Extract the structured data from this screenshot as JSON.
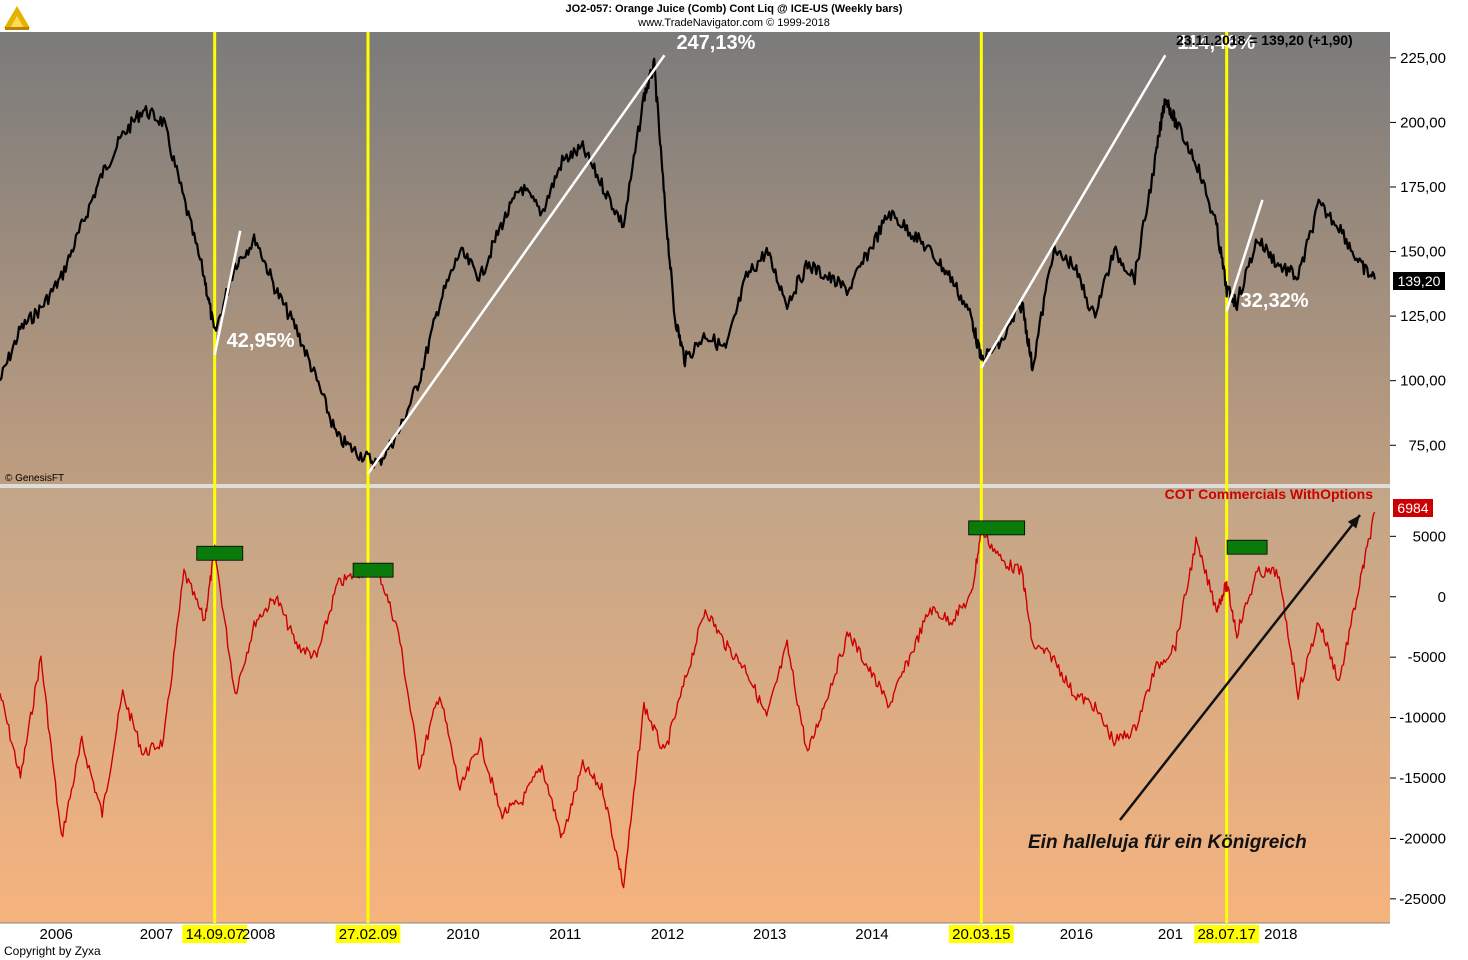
{
  "header": {
    "title": "JO2-057:  Orange Juice (Comb) Cont Liq @ ICE-US  (Weekly bars)",
    "subtitle": "www.TradeNavigator.com © 1999-2018"
  },
  "price_readout": "23.11.2018 = 139,20 (+1,90)",
  "price_last_label": "139,20",
  "genesis_label": "© GenesisFT",
  "cot_label": "COT Commercials WithOptions",
  "cot_last_label": "6984",
  "annotation_text": "Ein halleluja für ein Königreich",
  "copyright": "Copyright by Zyxa",
  "colors": {
    "price_line": "#000000",
    "cot_line": "#cc0000",
    "marker": "#ffff00",
    "trend": "#ffffff",
    "box": "#0a7a0a"
  },
  "chart_data": [
    {
      "type": "line",
      "title": "Orange Juice (Comb) Cont Liq @ ICE-US (Weekly bars)",
      "ylim": [
        60,
        235
      ],
      "y_ticks": [
        "75,00",
        "100,00",
        "125,00",
        "150,00",
        "175,00",
        "200,00",
        "225,00"
      ],
      "x_ticks": [
        "2006",
        "2007",
        "2008",
        "2010",
        "2011",
        "2012",
        "2013",
        "2014",
        "2016",
        "2018"
      ],
      "series": [
        {
          "name": "Orange Juice",
          "x": [
            2005.4,
            2005.6,
            2005.8,
            2006.0,
            2006.2,
            2006.4,
            2006.6,
            2006.8,
            2007.0,
            2007.2,
            2007.4,
            2007.5,
            2007.7,
            2007.9,
            2008.1,
            2008.3,
            2008.5,
            2008.7,
            2008.9,
            2009.1,
            2009.3,
            2009.5,
            2009.7,
            2009.9,
            2010.1,
            2010.3,
            2010.5,
            2010.7,
            2010.9,
            2011.1,
            2011.3,
            2011.5,
            2011.7,
            2011.8,
            2011.9,
            2012.0,
            2012.1,
            2012.3,
            2012.5,
            2012.7,
            2012.9,
            2013.1,
            2013.3,
            2013.5,
            2013.7,
            2013.9,
            2014.1,
            2014.3,
            2014.5,
            2014.7,
            2014.9,
            2015.0,
            2015.2,
            2015.4,
            2015.5,
            2015.7,
            2015.9,
            2016.1,
            2016.3,
            2016.5,
            2016.7,
            2016.8,
            2016.9,
            2017.1,
            2017.3,
            2017.4,
            2017.5,
            2017.7,
            2017.9,
            2018.1,
            2018.3,
            2018.5,
            2018.7,
            2018.85
          ],
          "values": [
            100,
            120,
            128,
            140,
            160,
            180,
            195,
            205,
            200,
            170,
            140,
            118,
            145,
            155,
            135,
            120,
            100,
            78,
            72,
            68,
            80,
            100,
            130,
            150,
            140,
            160,
            175,
            165,
            185,
            190,
            175,
            160,
            210,
            222,
            170,
            125,
            108,
            118,
            112,
            140,
            150,
            130,
            145,
            140,
            135,
            150,
            165,
            158,
            150,
            140,
            125,
            108,
            115,
            130,
            105,
            150,
            145,
            125,
            150,
            140,
            185,
            210,
            200,
            185,
            160,
            135,
            130,
            155,
            145,
            140,
            168,
            160,
            145,
            139.2
          ]
        }
      ]
    },
    {
      "type": "line",
      "title": "COT Commercials WithOptions",
      "ylim": [
        -27000,
        9000
      ],
      "y_ticks": [
        "5000",
        "0",
        "-5000",
        "-10000",
        "-15000",
        "-20000",
        "-25000"
      ],
      "series": [
        {
          "name": "COT Commercials WithOptions",
          "x": [
            2005.4,
            2005.6,
            2005.8,
            2006.0,
            2006.2,
            2006.4,
            2006.6,
            2006.8,
            2007.0,
            2007.2,
            2007.4,
            2007.5,
            2007.7,
            2007.9,
            2008.1,
            2008.3,
            2008.5,
            2008.7,
            2008.9,
            2009.1,
            2009.3,
            2009.5,
            2009.7,
            2009.9,
            2010.1,
            2010.3,
            2010.5,
            2010.7,
            2010.9,
            2011.1,
            2011.3,
            2011.5,
            2011.7,
            2011.9,
            2012.1,
            2012.3,
            2012.5,
            2012.7,
            2012.9,
            2013.1,
            2013.3,
            2013.5,
            2013.7,
            2013.9,
            2014.1,
            2014.3,
            2014.5,
            2014.7,
            2014.9,
            2015.0,
            2015.2,
            2015.4,
            2015.5,
            2015.7,
            2015.9,
            2016.1,
            2016.3,
            2016.5,
            2016.7,
            2016.9,
            2017.1,
            2017.3,
            2017.4,
            2017.5,
            2017.7,
            2017.9,
            2018.1,
            2018.3,
            2018.5,
            2018.7,
            2018.85
          ],
          "values": [
            -8000,
            -15000,
            -5000,
            -20000,
            -12000,
            -18000,
            -8000,
            -13000,
            -12000,
            2000,
            -2000,
            3800,
            -8000,
            -2000,
            0,
            -4000,
            -5000,
            1000,
            2000,
            2200,
            -3000,
            -14000,
            -8000,
            -16000,
            -12000,
            -18000,
            -17000,
            -14000,
            -20000,
            -14000,
            -16000,
            -24000,
            -9000,
            -13000,
            -7000,
            -1000,
            -4000,
            -6000,
            -10000,
            -4000,
            -13000,
            -8000,
            -3000,
            -6000,
            -9000,
            -5000,
            -1000,
            -2000,
            0,
            5500,
            3000,
            2000,
            -4000,
            -5000,
            -8000,
            -9000,
            -12000,
            -11000,
            -6000,
            -4000,
            4500,
            -1000,
            1000,
            -3000,
            2000,
            2000,
            -8000,
            -2000,
            -7000,
            1000,
            6984
          ]
        }
      ]
    }
  ],
  "markers": [
    {
      "date": "14.09.07",
      "x": 2007.5
    },
    {
      "date": "27.02.09",
      "x": 2009.0
    },
    {
      "date": "20.03.15",
      "x": 2015.0
    },
    {
      "date": "28.07.17",
      "x": 2017.4
    }
  ],
  "trends": [
    {
      "label": "42,95%",
      "x1": 2007.5,
      "y1": 110,
      "x2": 2007.75,
      "y2": 158
    },
    {
      "label": "247,13%",
      "x1": 2009.0,
      "y1": 64,
      "x2": 2011.9,
      "y2": 226
    },
    {
      "label": "114,46%",
      "x1": 2015.0,
      "y1": 105,
      "x2": 2016.8,
      "y2": 226
    },
    {
      "label": "32,32%",
      "x1": 2017.4,
      "y1": 127,
      "x2": 2017.75,
      "y2": 170
    }
  ],
  "cot_boxes": [
    {
      "x": 2007.55,
      "value": 3600
    },
    {
      "x": 2009.05,
      "value": 2200
    },
    {
      "x": 2015.15,
      "value": 5700
    },
    {
      "x": 2017.6,
      "value": 4100
    }
  ],
  "x_axis_labels": [
    {
      "text": "2006",
      "x": 2005.95
    },
    {
      "text": "2007",
      "x": 2006.93
    },
    {
      "text": "2008",
      "x": 2007.93
    },
    {
      "text": "2010",
      "x": 2009.93
    },
    {
      "text": "2011",
      "x": 2010.93
    },
    {
      "text": "2012",
      "x": 2011.93
    },
    {
      "text": "2013",
      "x": 2012.93
    },
    {
      "text": "2014",
      "x": 2013.93
    },
    {
      "text": "2016",
      "x": 2015.93
    },
    {
      "text": "201",
      "x": 2016.85
    },
    {
      "text": "2018",
      "x": 2017.93
    }
  ]
}
